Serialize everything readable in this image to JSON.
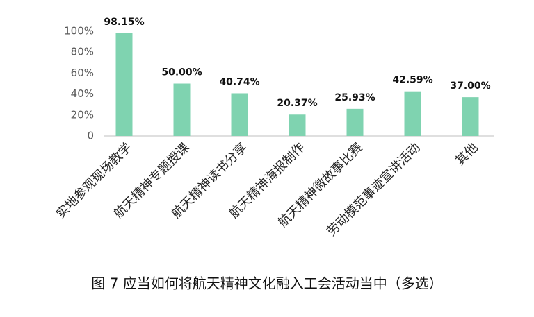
{
  "chart_data": {
    "type": "bar",
    "title": "图 7   应当如何将航天精神文化融入工会活动当中（多选）",
    "categories": [
      "实地参观现场教学",
      "航天精神专题授课",
      "航天精神读书分享",
      "航天精神海报制作",
      "航天精神微故事比赛",
      "劳动模范事迹宣讲活动",
      "其他"
    ],
    "values": [
      98.15,
      50.0,
      40.74,
      20.37,
      25.93,
      42.59,
      37.0
    ],
    "value_labels": [
      "98.15%",
      "50.00%",
      "40.74%",
      "20.37%",
      "25.93%",
      "42.59%",
      "37.00%"
    ],
    "color": "#7fd3b0",
    "ylim": [
      0,
      100
    ],
    "yticks": [
      0,
      {
        "value": 20,
        "label": "20%"
      },
      {
        "value": 40,
        "label": "40%"
      },
      {
        "value": 60,
        "label": "60%"
      },
      {
        "value": 80,
        "label": "80%"
      },
      {
        "value": 100,
        "label": "100%"
      }
    ],
    "grid": false
  }
}
